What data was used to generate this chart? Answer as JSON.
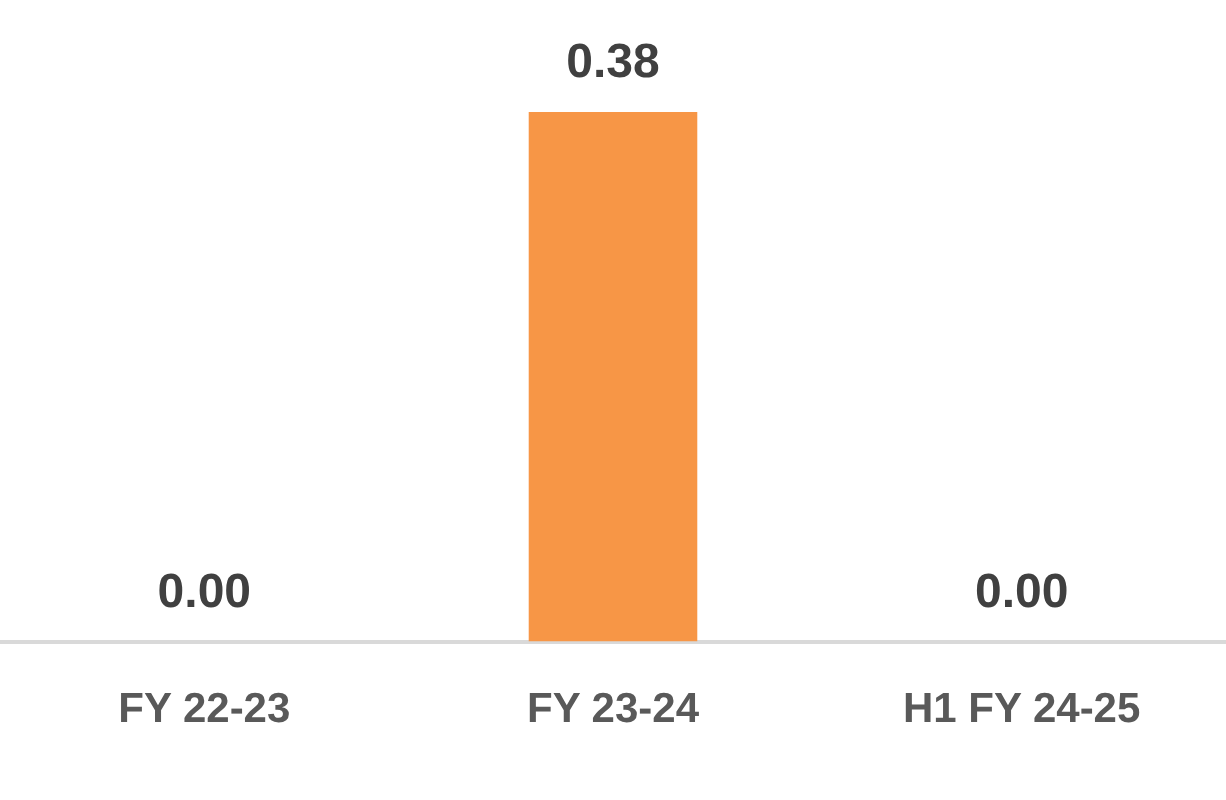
{
  "chart_data": {
    "type": "bar",
    "categories": [
      "FY 22-23",
      "FY 23-24",
      "H1 FY 24-25"
    ],
    "values": [
      0,
      0.38,
      0
    ],
    "value_labels": [
      "0.00",
      "0.38",
      "0.00"
    ],
    "color": "#f79646",
    "tick_labels": "x",
    "grid": false,
    "legend": false
  }
}
